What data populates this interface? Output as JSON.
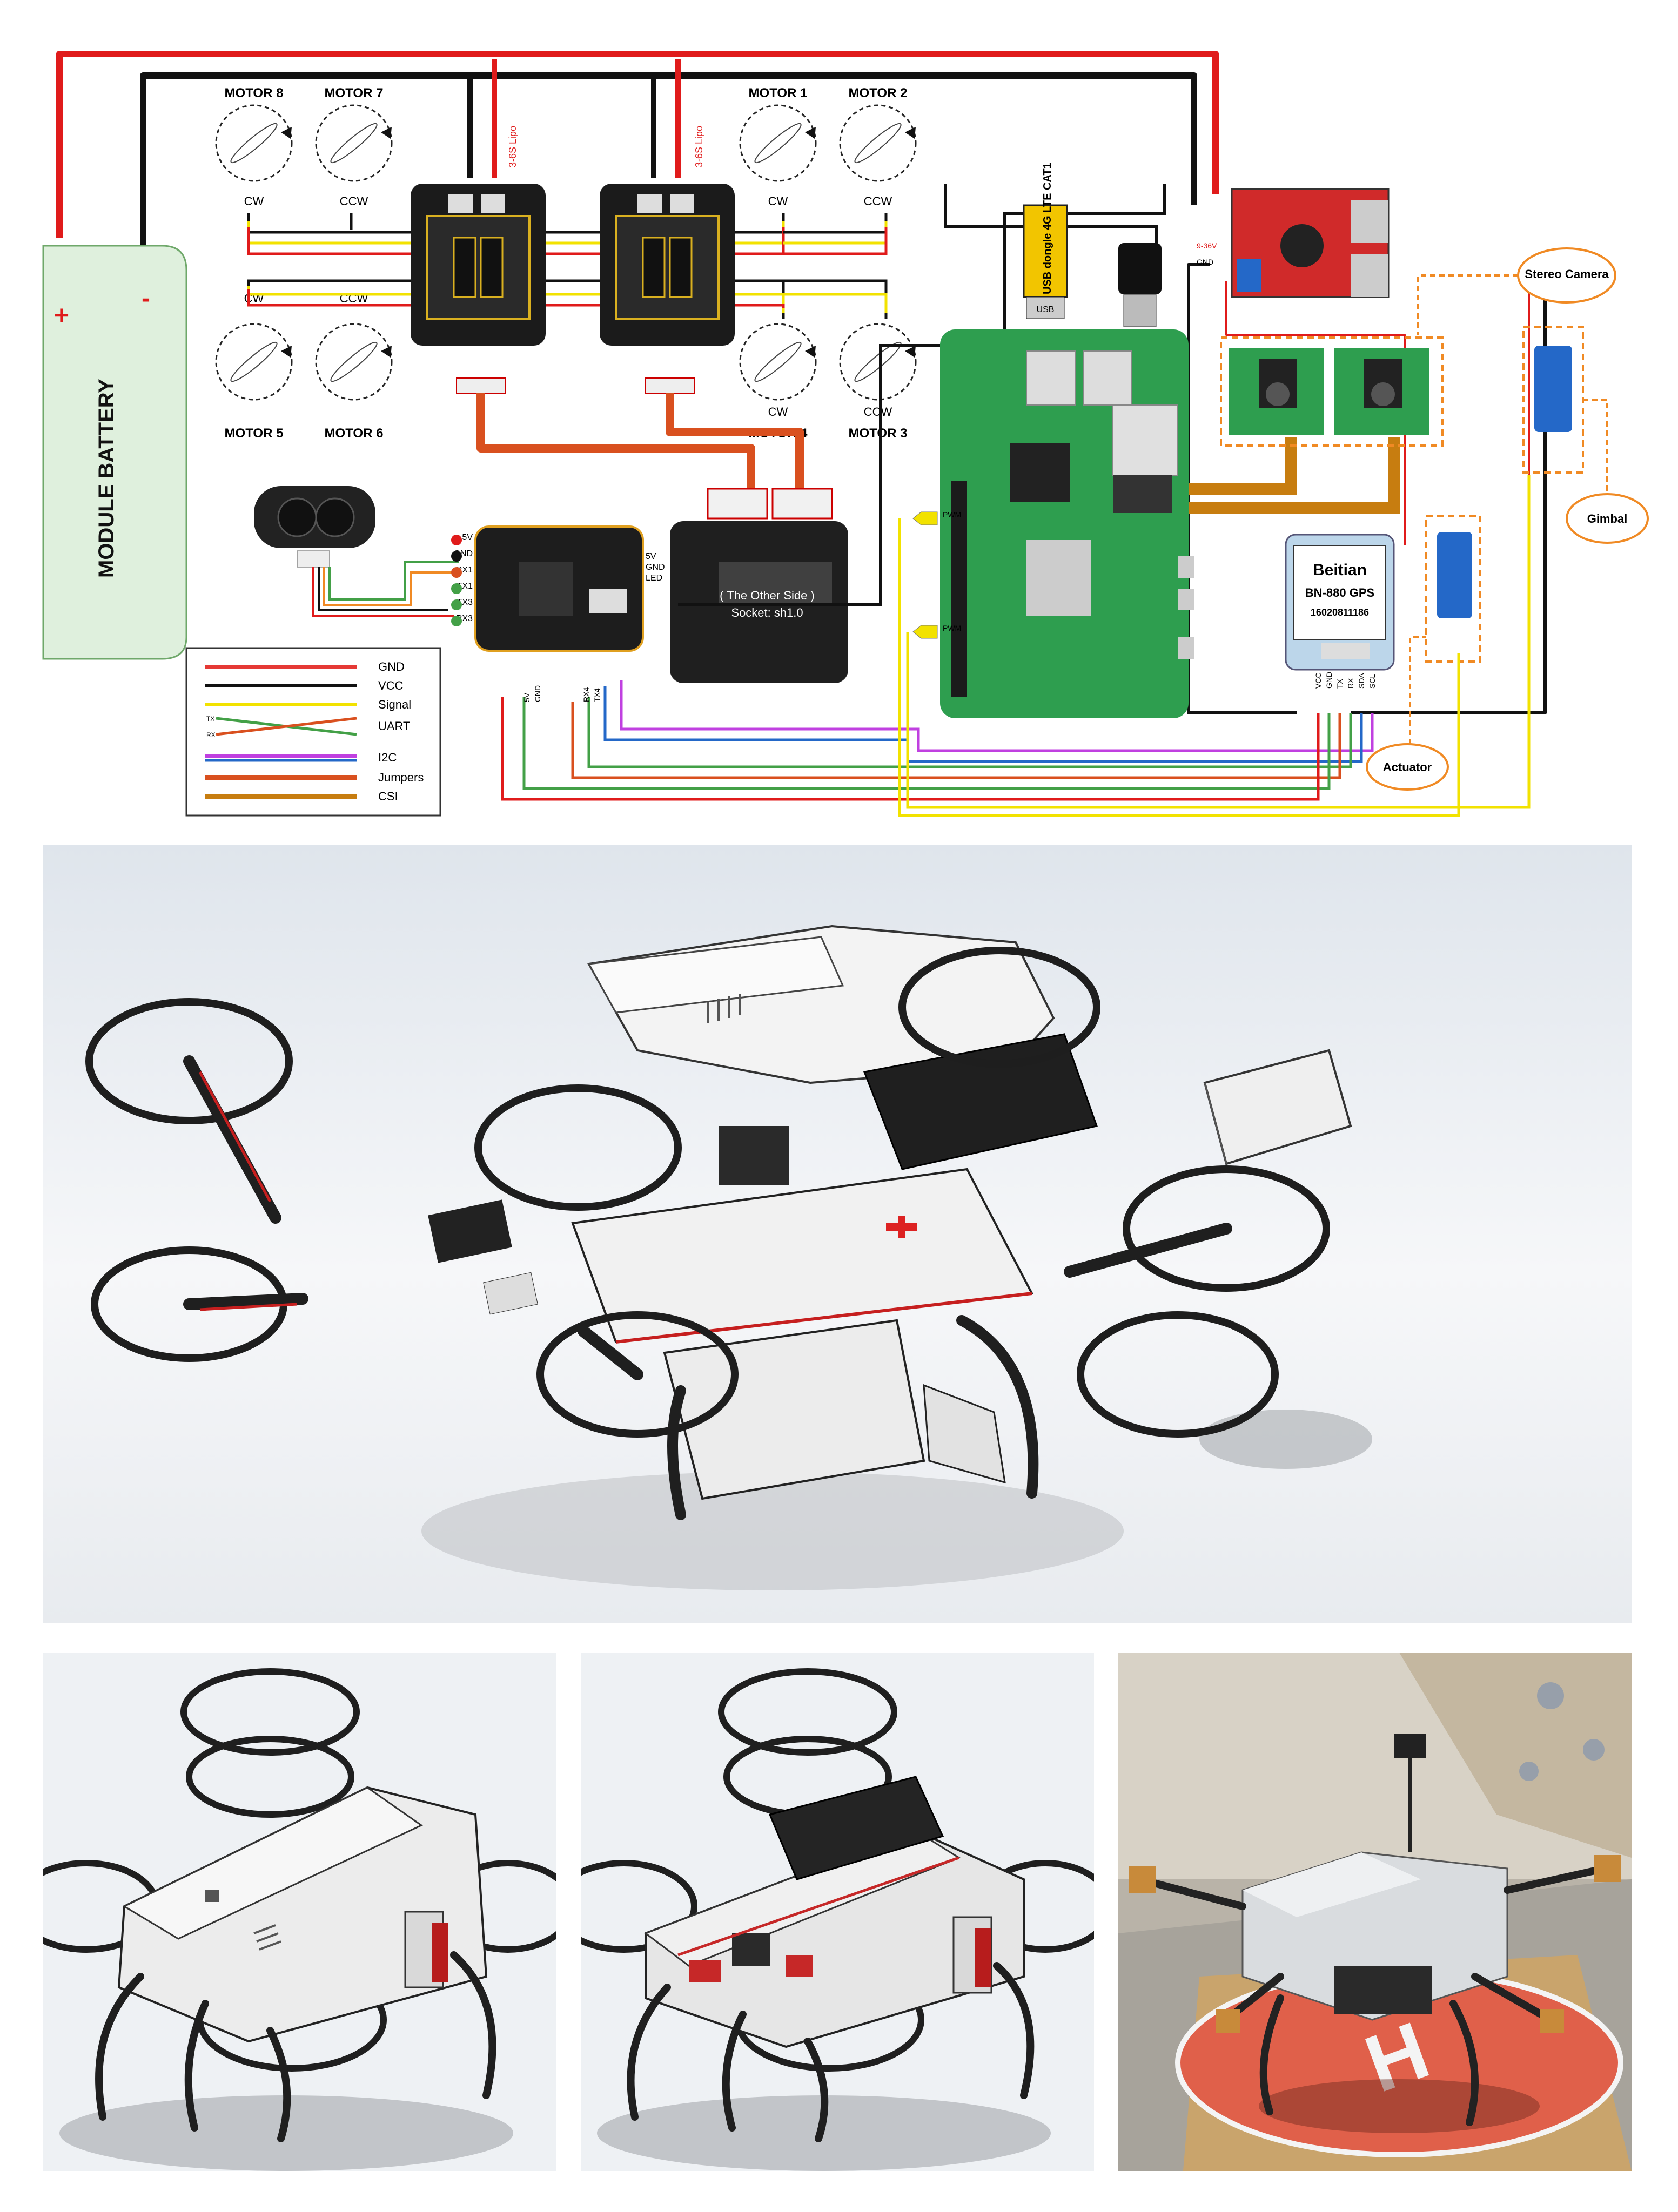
{
  "wiring": {
    "battery_label": "MODULE BATTERY",
    "battery_plus": "+",
    "battery_minus": "-",
    "motors": [
      {
        "name": "MOTOR 8",
        "dir": "CW"
      },
      {
        "name": "MOTOR 7",
        "dir": "CCW"
      },
      {
        "name": "MOTOR 1",
        "dir": "CW"
      },
      {
        "name": "MOTOR 2",
        "dir": "CCW"
      },
      {
        "name": "MOTOR 5",
        "dir": "CW"
      },
      {
        "name": "MOTOR 6",
        "dir": "CCW"
      },
      {
        "name": "MOTOR 4",
        "dir": "CW"
      },
      {
        "name": "MOTOR 3",
        "dir": "CCW"
      }
    ],
    "esc_label": "3-6S Lipo",
    "usb_dongle": "USB dongle 4G LTE CAT1",
    "usb_tag": "USB",
    "stereo_camera": "Stereo Camera",
    "gimbal": "Gimbal",
    "actuator": "Actuator",
    "gps_brand": "Beitian",
    "gps_model": "BN-880  GPS",
    "gps_serial": "16020811186",
    "other_side_line1": "( The Other Side )",
    "other_side_line2": "Socket: sh1.0",
    "converter_in": "9-36V",
    "converter_gnd": "GND",
    "pwm1": "PWM",
    "pwm2": "PWM",
    "fc_right_pins": [
      "5V",
      "GND",
      "LED"
    ],
    "fc_left_pins": [
      "5V",
      "GND",
      "RX1",
      "TX1",
      "TX3",
      "RX3"
    ],
    "fc_bottom_pins": [
      "5V",
      "GND",
      "RX4",
      "TX4"
    ],
    "gps_pins": [
      "VCC",
      "GND",
      "TX",
      "RX",
      "SDA",
      "SCL"
    ],
    "legend": [
      {
        "label": "GND",
        "color": "#e53935"
      },
      {
        "label": "VCC",
        "color": "#111111"
      },
      {
        "label": "Signal",
        "color": "#f2e200"
      },
      {
        "label": "UART",
        "color": "#43a047"
      },
      {
        "label": "I2C",
        "color": "#c040e0"
      },
      {
        "label": "Jumpers",
        "color": "#d9501f"
      },
      {
        "label": "CSI",
        "color": "#c77d10"
      }
    ],
    "legend_uart_tx": "TX",
    "legend_uart_rx": "RX"
  },
  "colors": {
    "battery_fill": "#dff0dd",
    "red_wire": "#e01b1b",
    "black_wire": "#111111",
    "yellow_wire": "#f2e200",
    "orange_dash": "#f08a24",
    "pcb_green": "#2e9e4f",
    "cad_bg": "#e9edf2"
  },
  "photo": {
    "pad_letter": "H"
  }
}
